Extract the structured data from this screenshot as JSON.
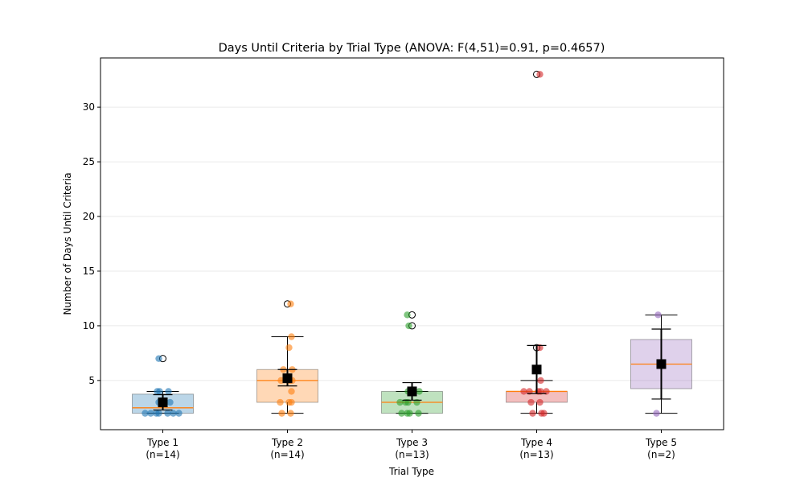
{
  "chart_data": {
    "type": "box",
    "title": "Days Until Criteria by Trial Type (ANOVA: F(4,51)=0.91, p=0.4657)",
    "xlabel": "Trial Type",
    "ylabel": "Number of Days Until Criteria",
    "ylim": [
      0.5,
      34.5
    ],
    "yticks": [
      5,
      10,
      15,
      20,
      25,
      30
    ],
    "grid": "horizontal",
    "categories": [
      {
        "name": "Type 1",
        "n_label": "(n=14)",
        "color": "#1f77b4",
        "q1": 2.0,
        "median": 2.5,
        "q3": 3.75,
        "whisker_low": 2,
        "whisker_high": 4,
        "outliers": [
          7
        ],
        "mean": 3.0,
        "ci_low": 2.3,
        "ci_high": 3.7,
        "points": [
          2,
          2,
          2,
          2,
          2,
          2,
          2,
          3,
          3,
          3,
          4,
          4,
          4,
          7
        ]
      },
      {
        "name": "Type 2",
        "n_label": "(n=14)",
        "color": "#ff7f0e",
        "q1": 3.0,
        "median": 5.0,
        "q3": 6.0,
        "whisker_low": 2,
        "whisker_high": 9,
        "outliers": [
          12
        ],
        "mean": 5.2,
        "ci_low": 4.5,
        "ci_high": 6.0,
        "points": [
          2,
          2,
          3,
          3,
          3,
          4,
          5,
          5,
          5,
          6,
          6,
          8,
          9,
          12
        ]
      },
      {
        "name": "Type 3",
        "n_label": "(n=13)",
        "color": "#2ca02c",
        "q1": 2.0,
        "median": 3.0,
        "q3": 4.0,
        "whisker_low": 2,
        "whisker_high": 4,
        "outliers": [
          10,
          11
        ],
        "mean": 4.0,
        "ci_low": 3.2,
        "ci_high": 4.8,
        "points": [
          2,
          2,
          2,
          2,
          3,
          3,
          3,
          3,
          4,
          4,
          4,
          10,
          11
        ]
      },
      {
        "name": "Type 4",
        "n_label": "(n=13)",
        "color": "#d62728",
        "q1": 3.0,
        "median": 4.0,
        "q3": 4.0,
        "whisker_low": 2,
        "whisker_high": 5,
        "outliers": [
          8,
          33
        ],
        "mean": 6.0,
        "ci_low": 3.8,
        "ci_high": 8.2,
        "points": [
          2,
          2,
          2,
          3,
          3,
          4,
          4,
          4,
          4,
          4,
          5,
          8,
          33
        ]
      },
      {
        "name": "Type 5",
        "n_label": "(n=2)",
        "color": "#9467bd",
        "q1": 4.25,
        "median": 6.5,
        "q3": 8.75,
        "whisker_low": 2,
        "whisker_high": 11,
        "outliers": [],
        "mean": 6.5,
        "ci_low": 3.3,
        "ci_high": 9.7,
        "points": [
          2,
          11
        ]
      }
    ]
  }
}
